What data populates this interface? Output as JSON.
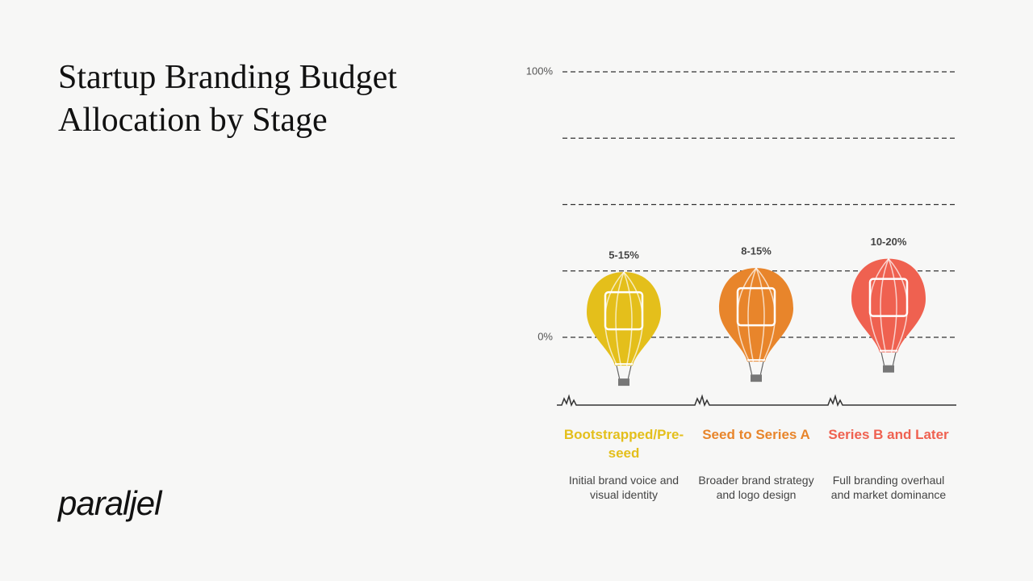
{
  "chart_data": {
    "type": "balloon",
    "title": "Startup Branding Budget Allocation by Stage",
    "categories": [
      "Bootstrapped/Pre-seed",
      "Seed to Series A",
      "Series B and Later"
    ],
    "descriptions": [
      "Initial brand voice and visual identity",
      "Broader brand strategy and logo design",
      "Full branding overhaul and market dominance"
    ],
    "low": [
      5,
      8,
      10
    ],
    "high": [
      15,
      15,
      20
    ],
    "value_labels": [
      "5-15%",
      "8-15%",
      "10-20%"
    ],
    "colors": [
      "#e4bf1b",
      "#e8852b",
      "#ef6150"
    ],
    "ylim": [
      0,
      100
    ],
    "yticks": [
      {
        "value": 0,
        "label": "0%"
      },
      {
        "value": 25,
        "label": null
      },
      {
        "value": 50,
        "label": null
      },
      {
        "value": 75,
        "label": null
      },
      {
        "value": 100,
        "label": "100%"
      }
    ],
    "grid": true
  },
  "logo": "paraljel"
}
